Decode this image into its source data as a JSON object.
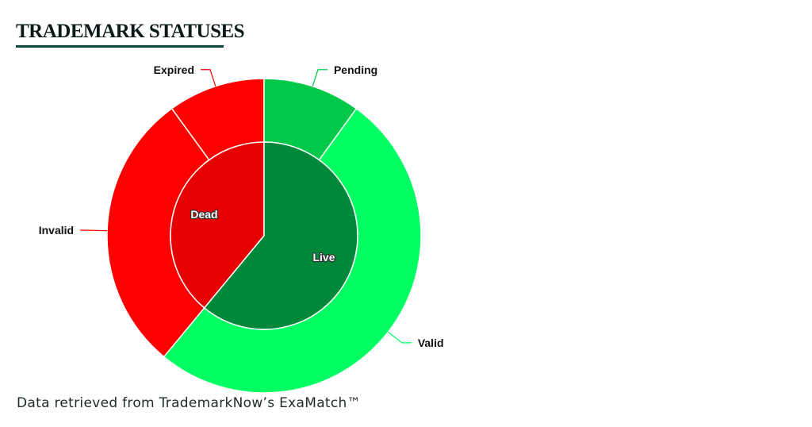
{
  "header": {
    "title": "TRADEMARK STATUSES"
  },
  "footer": {
    "source": "Data retrieved from TrademarkNow’s ExaMatch™"
  },
  "chart_data": {
    "type": "pie",
    "subtype": "sunburst",
    "title": "TRADEMARK STATUSES",
    "inner_ring": [
      {
        "name": "Dead",
        "value": 39,
        "color": "#e60000"
      },
      {
        "name": "Live",
        "value": 61,
        "color": "#00883a"
      }
    ],
    "outer_ring": [
      {
        "name": "Expired",
        "parent": "Dead",
        "value": 10,
        "color": "#ff0000"
      },
      {
        "name": "Invalid",
        "parent": "Dead",
        "value": 29,
        "color": "#ff0000"
      },
      {
        "name": "Valid",
        "parent": "Live",
        "value": 51,
        "color": "#00ff62"
      },
      {
        "name": "Pending",
        "parent": "Live",
        "value": 10,
        "color": "#00c94a"
      }
    ],
    "legend": "none"
  }
}
